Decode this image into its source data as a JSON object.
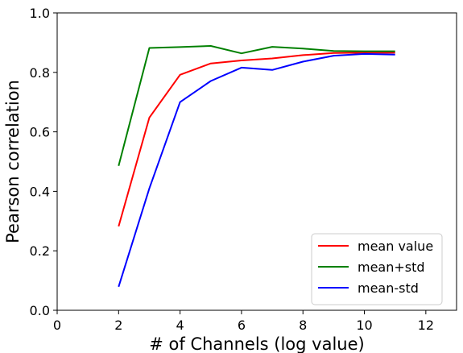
{
  "chart_data": {
    "type": "line",
    "title": "",
    "xlabel": "# of Channels (log value)",
    "ylabel": "Pearson correlation",
    "xlim": [
      0,
      13
    ],
    "ylim": [
      0.0,
      1.0
    ],
    "xticks": [
      0,
      2,
      4,
      6,
      8,
      10,
      12
    ],
    "xtick_labels": [
      "0",
      "2",
      "4",
      "6",
      "8",
      "10",
      "12"
    ],
    "yticks": [
      0.0,
      0.2,
      0.4,
      0.6,
      0.8,
      1.0
    ],
    "ytick_labels": [
      "0.0",
      "0.2",
      "0.4",
      "0.6",
      "0.8",
      "1.0"
    ],
    "grid": false,
    "legend_position": "lower-right",
    "x": [
      2,
      3,
      4,
      5,
      6,
      7,
      8,
      9,
      10,
      11
    ],
    "series": [
      {
        "name": "mean value",
        "color": "#ff0000",
        "values": [
          0.282,
          0.648,
          0.792,
          0.83,
          0.84,
          0.847,
          0.858,
          0.865,
          0.866,
          0.866
        ]
      },
      {
        "name": "mean+std",
        "color": "#008000",
        "values": [
          0.486,
          0.882,
          0.885,
          0.889,
          0.864,
          0.886,
          0.88,
          0.872,
          0.871,
          0.871
        ]
      },
      {
        "name": "mean-std",
        "color": "#0000ff",
        "values": [
          0.079,
          0.41,
          0.7,
          0.771,
          0.816,
          0.808,
          0.836,
          0.856,
          0.862,
          0.86
        ]
      }
    ]
  }
}
